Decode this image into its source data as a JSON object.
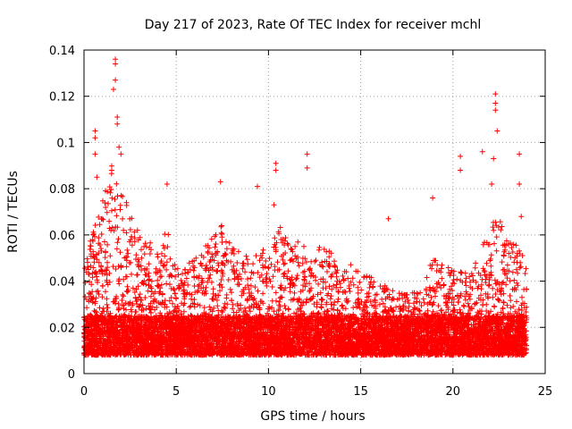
{
  "chart_data": {
    "type": "scatter",
    "title": "Day 217 of 2023, Rate Of TEC Index for receiver mchl",
    "xlabel": "GPS time / hours",
    "ylabel": "ROTI / TECUs",
    "xlim": [
      0,
      25
    ],
    "ylim": [
      0,
      0.14
    ],
    "x_ticks": [
      0,
      5,
      10,
      15,
      20,
      25
    ],
    "x_tick_labels": [
      "0",
      "5",
      "10",
      "15",
      "20",
      "25"
    ],
    "y_ticks": [
      0,
      0.02,
      0.04,
      0.06,
      0.08,
      0.1,
      0.12,
      0.14
    ],
    "y_tick_labels": [
      "0",
      "0.02",
      "0.04",
      "0.06",
      "0.08",
      "0.1",
      "0.12",
      "0.14"
    ],
    "grid": true,
    "marker": "+",
    "color": "#ff0000",
    "data_coverage_hours": [
      0,
      24
    ],
    "envelope_hours": [
      0,
      1,
      1.5,
      2,
      3,
      4,
      4.5,
      5,
      6,
      7,
      7.5,
      8,
      9,
      10,
      10.5,
      11,
      12,
      13,
      14,
      15,
      16,
      17,
      18,
      18.5,
      19,
      20,
      21,
      22,
      22.5,
      23,
      24
    ],
    "envelope_max_roti": [
      0.05,
      0.075,
      0.09,
      0.08,
      0.06,
      0.055,
      0.065,
      0.045,
      0.05,
      0.06,
      0.065,
      0.055,
      0.05,
      0.055,
      0.065,
      0.06,
      0.055,
      0.055,
      0.05,
      0.045,
      0.04,
      0.035,
      0.035,
      0.045,
      0.05,
      0.045,
      0.045,
      0.065,
      0.07,
      0.06,
      0.05
    ],
    "baseline_band_roti": [
      0.008,
      0.025
    ],
    "outliers": [
      {
        "x": 1.7,
        "y": 0.136
      },
      {
        "x": 1.7,
        "y": 0.134
      },
      {
        "x": 1.7,
        "y": 0.127
      },
      {
        "x": 1.6,
        "y": 0.123
      },
      {
        "x": 1.8,
        "y": 0.111
      },
      {
        "x": 1.8,
        "y": 0.108
      },
      {
        "x": 0.6,
        "y": 0.105
      },
      {
        "x": 0.6,
        "y": 0.102
      },
      {
        "x": 0.6,
        "y": 0.095
      },
      {
        "x": 1.9,
        "y": 0.098
      },
      {
        "x": 2.0,
        "y": 0.095
      },
      {
        "x": 1.5,
        "y": 0.088
      },
      {
        "x": 0.7,
        "y": 0.085
      },
      {
        "x": 4.5,
        "y": 0.082
      },
      {
        "x": 7.4,
        "y": 0.083
      },
      {
        "x": 9.4,
        "y": 0.081
      },
      {
        "x": 10.4,
        "y": 0.091
      },
      {
        "x": 10.4,
        "y": 0.088
      },
      {
        "x": 10.3,
        "y": 0.073
      },
      {
        "x": 12.1,
        "y": 0.095
      },
      {
        "x": 12.1,
        "y": 0.089
      },
      {
        "x": 16.5,
        "y": 0.067
      },
      {
        "x": 18.9,
        "y": 0.076
      },
      {
        "x": 20.4,
        "y": 0.094
      },
      {
        "x": 20.4,
        "y": 0.088
      },
      {
        "x": 21.6,
        "y": 0.096
      },
      {
        "x": 22.2,
        "y": 0.093
      },
      {
        "x": 22.3,
        "y": 0.121
      },
      {
        "x": 22.3,
        "y": 0.117
      },
      {
        "x": 22.3,
        "y": 0.114
      },
      {
        "x": 22.4,
        "y": 0.105
      },
      {
        "x": 22.1,
        "y": 0.082
      },
      {
        "x": 23.6,
        "y": 0.095
      },
      {
        "x": 23.6,
        "y": 0.082
      },
      {
        "x": 23.7,
        "y": 0.068
      }
    ]
  }
}
